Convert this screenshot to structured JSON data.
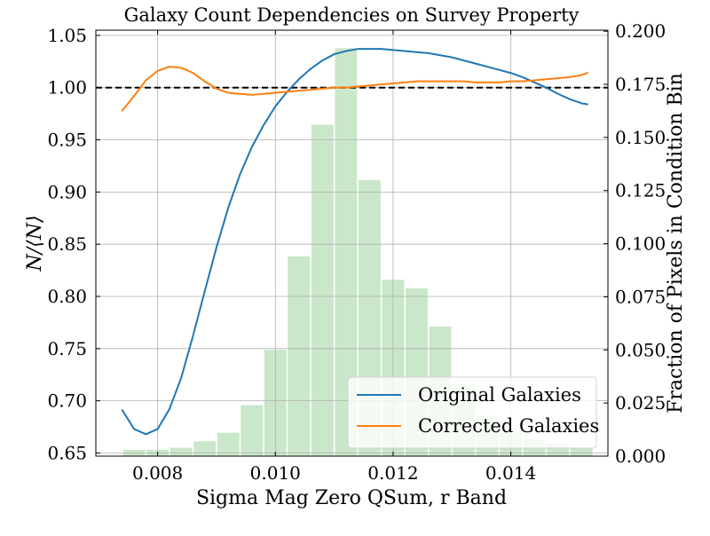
{
  "chart_data": {
    "type": "line",
    "title": "Galaxy Count Dependencies on Survey Property",
    "xlabel": "Sigma Mag Zero QSum, r Band",
    "ylabel": "N/⟨N⟩",
    "y2label": "Fraction of Pixels in Condition Bin",
    "xlim": [
      0.00695,
      0.01565
    ],
    "ylim": [
      0.647,
      1.055
    ],
    "y2lim": [
      0.0,
      0.2005
    ],
    "xticks": [
      0.008,
      0.01,
      0.012,
      0.014
    ],
    "xtick_labels": [
      "0.008",
      "0.010",
      "0.012",
      "0.014"
    ],
    "yticks": [
      0.65,
      0.7,
      0.75,
      0.8,
      0.85,
      0.9,
      0.95,
      1.0,
      1.05
    ],
    "ytick_labels": [
      "0.65",
      "0.70",
      "0.75",
      "0.80",
      "0.85",
      "0.90",
      "0.95",
      "1.00",
      "1.05"
    ],
    "y2ticks": [
      0.0,
      0.025,
      0.05,
      0.075,
      0.1,
      0.125,
      0.15,
      0.175,
      0.2
    ],
    "y2tick_labels": [
      "0.000",
      "0.025",
      "0.050",
      "0.075",
      "0.100",
      "0.125",
      "0.150",
      "0.175",
      "0.200"
    ],
    "grid": true,
    "legend_position": "lower-right",
    "reference_line": {
      "y": 1.0,
      "style": "dashed",
      "color": "#000000"
    },
    "series": [
      {
        "name": "Original Galaxies",
        "color": "#1f77b4",
        "x": [
          0.0074,
          0.0076,
          0.0078,
          0.008,
          0.0082,
          0.0084,
          0.0086,
          0.0088,
          0.009,
          0.0092,
          0.0094,
          0.0096,
          0.0098,
          0.01,
          0.0102,
          0.0104,
          0.0106,
          0.0108,
          0.011,
          0.0112,
          0.0114,
          0.0116,
          0.0118,
          0.012,
          0.0122,
          0.0124,
          0.0126,
          0.0128,
          0.013,
          0.0132,
          0.0134,
          0.0136,
          0.0138,
          0.014,
          0.0142,
          0.0144,
          0.0146,
          0.0148,
          0.015,
          0.0152,
          0.0153
        ],
        "values": [
          0.691,
          0.673,
          0.668,
          0.673,
          0.692,
          0.722,
          0.762,
          0.805,
          0.847,
          0.885,
          0.917,
          0.943,
          0.964,
          0.982,
          0.996,
          1.008,
          1.018,
          1.026,
          1.032,
          1.035,
          1.037,
          1.037,
          1.037,
          1.036,
          1.035,
          1.034,
          1.033,
          1.031,
          1.029,
          1.026,
          1.023,
          1.02,
          1.017,
          1.014,
          1.01,
          1.005,
          1.0,
          0.994,
          0.989,
          0.985,
          0.984
        ]
      },
      {
        "name": "Corrected Galaxies",
        "color": "#ff7f0e",
        "x": [
          0.0074,
          0.0076,
          0.0078,
          0.008,
          0.0082,
          0.0084,
          0.0086,
          0.0088,
          0.009,
          0.0092,
          0.0094,
          0.0096,
          0.0098,
          0.01,
          0.0102,
          0.0104,
          0.0106,
          0.0108,
          0.011,
          0.0112,
          0.0114,
          0.0116,
          0.0118,
          0.012,
          0.0122,
          0.0124,
          0.0126,
          0.0128,
          0.013,
          0.0132,
          0.0134,
          0.0136,
          0.0138,
          0.014,
          0.0142,
          0.0144,
          0.0146,
          0.0148,
          0.015,
          0.0152,
          0.0153
        ],
        "values": [
          0.978,
          0.992,
          1.007,
          1.016,
          1.02,
          1.019,
          1.014,
          1.006,
          0.999,
          0.995,
          0.994,
          0.993,
          0.994,
          0.995,
          0.996,
          0.997,
          0.998,
          0.999,
          1.0,
          1.0,
          1.001,
          1.002,
          1.003,
          1.004,
          1.005,
          1.006,
          1.006,
          1.006,
          1.006,
          1.006,
          1.005,
          1.005,
          1.005,
          1.006,
          1.006,
          1.007,
          1.008,
          1.009,
          1.01,
          1.012,
          1.014
        ]
      }
    ],
    "histogram": {
      "axis": "right",
      "color": "#2ca02c",
      "opacity": 0.25,
      "bin_edges": [
        0.0074,
        0.0078,
        0.0082,
        0.0086,
        0.009,
        0.0094,
        0.0098,
        0.0102,
        0.0106,
        0.011,
        0.0114,
        0.0118,
        0.0122,
        0.0126,
        0.013,
        0.0134,
        0.0138,
        0.0142,
        0.0146,
        0.015,
        0.0154
      ],
      "values": [
        0.003,
        0.003,
        0.004,
        0.007,
        0.011,
        0.024,
        0.05,
        0.094,
        0.156,
        0.192,
        0.13,
        0.083,
        0.079,
        0.061,
        0.034,
        0.019,
        0.011,
        0.008,
        0.006,
        0.004
      ]
    }
  }
}
